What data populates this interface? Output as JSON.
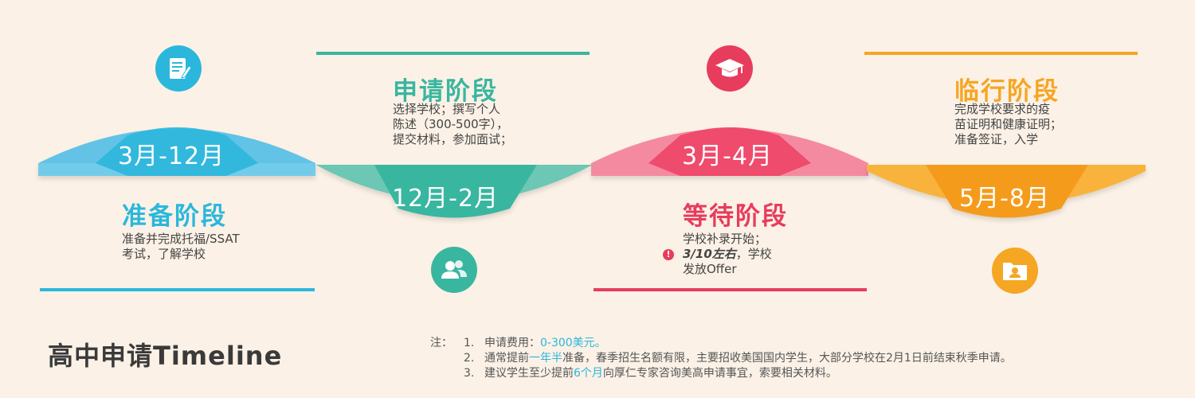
{
  "page_title": "高中申请Timeline",
  "colors": {
    "prepare": "#2bb7dc",
    "apply": "#39b6a0",
    "wait": "#e73c5d",
    "depart": "#f5a623",
    "background": "#fbf1e6"
  },
  "stages": [
    {
      "title": "准备阶段",
      "date": "3月-12月",
      "desc": [
        "准备并完成托福/SSAT",
        "考试，了解学校"
      ],
      "icon": "document-pen-icon"
    },
    {
      "title": "申请阶段",
      "date": "12月-2月",
      "desc": [
        "选择学校；撰写个人",
        "陈述（300-500字），",
        "提交材料，参加面试；"
      ],
      "icon": "users-icon"
    },
    {
      "title": "等待阶段",
      "date": "3月-4月",
      "desc": [
        "学校补录开始；",
        "3/10左右",
        "，学校",
        "发放Offer"
      ],
      "icon": "graduation-cap-icon"
    },
    {
      "title": "临行阶段",
      "date": "5月-8月",
      "desc": [
        "完成学校要求的疫",
        "苗证明和健康证明；",
        "准备签证，入学"
      ],
      "icon": "folder-person-icon"
    }
  ],
  "notes": {
    "label": "注：",
    "items": [
      {
        "num": "1.",
        "pre": "申请费用：",
        "hl": "0-300美元。",
        "post": ""
      },
      {
        "num": "2.",
        "pre": "通常提前",
        "hl": "一年半",
        "post": "准备，春季招生名额有限，主要招收美国国内学生，大部分学校在2月1日前结束秋季申请。"
      },
      {
        "num": "3.",
        "pre": "建议学生至少提前",
        "hl": "6个月",
        "post": "向厚仁专家咨询美高申请事宜，索要相关材料。"
      }
    ]
  }
}
